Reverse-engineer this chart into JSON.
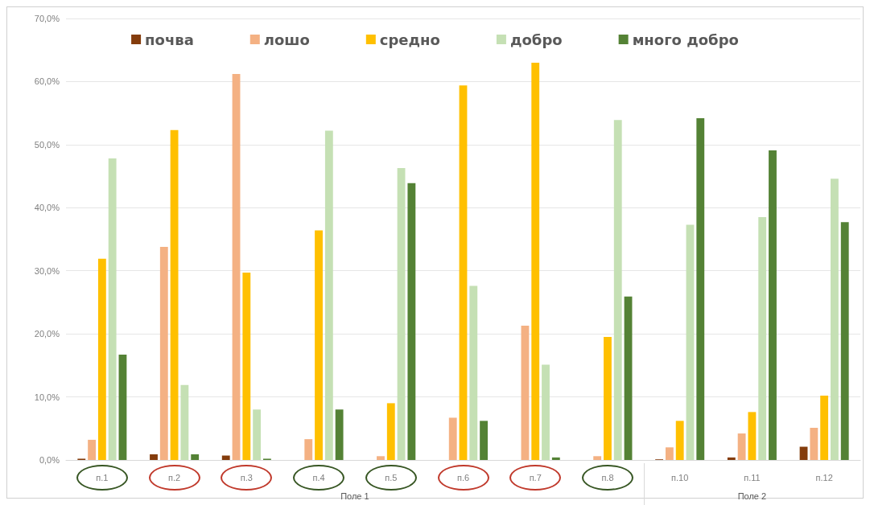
{
  "chart_data": {
    "type": "bar",
    "categories": [
      "п.1",
      "п.2",
      "п.3",
      "п.4",
      "п.5",
      "п.6",
      "п.7",
      "п.8",
      "п.10",
      "п.11",
      "п.12"
    ],
    "series": [
      {
        "name": "почва",
        "color": "#843c0c",
        "values": [
          0.2,
          0.9,
          0.7,
          0,
          0,
          0,
          0,
          0,
          0.1,
          0.4,
          2.1
        ]
      },
      {
        "name": "лошо",
        "color": "#f4b183",
        "values": [
          3.2,
          33.8,
          61.2,
          3.3,
          0.6,
          6.7,
          21.3,
          0.6,
          2.0,
          4.2,
          5.1
        ]
      },
      {
        "name": "средно",
        "color": "#ffc000",
        "values": [
          31.9,
          52.3,
          29.7,
          36.4,
          9.0,
          59.4,
          63.0,
          19.5,
          6.2,
          7.6,
          10.2
        ]
      },
      {
        "name": "добро",
        "color": "#c5e0b4",
        "values": [
          47.8,
          11.9,
          8.0,
          52.2,
          46.3,
          27.6,
          15.1,
          53.9,
          37.3,
          38.5,
          44.6
        ]
      },
      {
        "name": "много добро",
        "color": "#548235",
        "values": [
          16.7,
          0.9,
          0.2,
          8.0,
          43.9,
          6.2,
          0.4,
          25.9,
          54.2,
          49.1,
          37.7
        ]
      }
    ],
    "ylim": [
      0,
      70
    ],
    "yticks": [
      {
        "value": 0,
        "label": "0,0%"
      },
      {
        "value": 10,
        "label": "10,0%"
      },
      {
        "value": 20,
        "label": "20,0%"
      },
      {
        "value": 30,
        "label": "30,0%"
      },
      {
        "value": 40,
        "label": "40,0%"
      },
      {
        "value": 50,
        "label": "50,0%"
      },
      {
        "value": 60,
        "label": "60,0%"
      },
      {
        "value": 70,
        "label": "70,0%"
      }
    ],
    "grid": "y",
    "legend": "top",
    "annotations": [
      "Поле 1",
      "Поле 2"
    ]
  }
}
